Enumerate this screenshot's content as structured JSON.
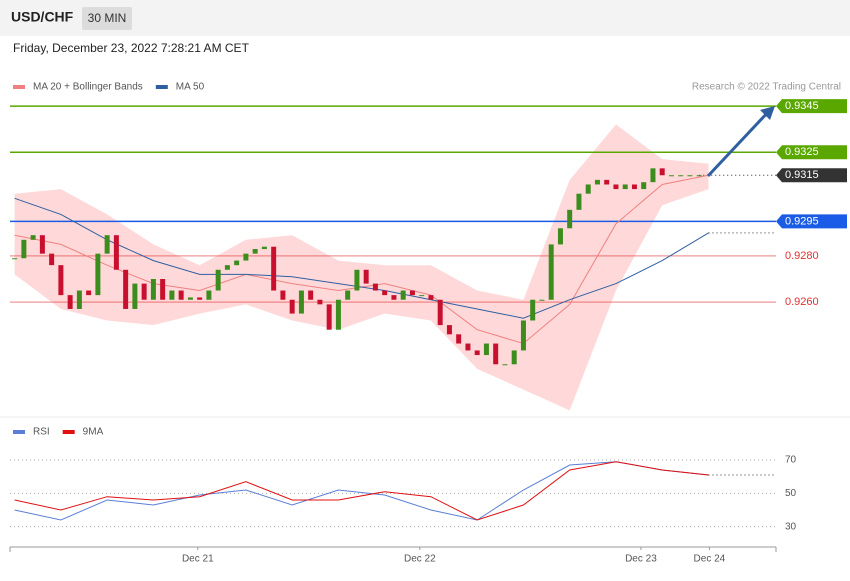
{
  "header": {
    "symbol": "USD/CHF",
    "interval": "30 MIN",
    "timestamp": "Friday, December 23, 2022 7:28:21 AM CET"
  },
  "chart_data": [
    {
      "type": "candlestick",
      "source": "Research © 2022 Trading Central",
      "values": [
        0.9279,
        0.9287,
        0.9289,
        0.9281,
        0.9276,
        0.9263,
        0.9257,
        0.9265,
        0.9263,
        0.9281,
        0.9289,
        0.9274,
        0.9257,
        0.9268,
        0.9261,
        0.927,
        0.9261,
        0.9265,
        0.9261,
        0.9262,
        0.9261,
        0.9265,
        0.9274,
        0.9276,
        0.9278,
        0.9281,
        0.9283,
        0.9284,
        0.9265,
        0.9261,
        0.9255,
        0.9265,
        0.9261,
        0.9259,
        0.9248,
        0.9261,
        0.9265,
        0.9274,
        0.9268,
        0.9265,
        0.9263,
        0.9261,
        0.9265,
        0.9263,
        0.9263,
        0.9261,
        0.925,
        0.9246,
        0.9242,
        0.9239,
        0.9237,
        0.9242,
        0.9233,
        0.9233,
        0.9239,
        0.9252,
        0.9261,
        0.9261,
        0.9285,
        0.9292,
        0.93,
        0.9307,
        0.9311,
        0.9313,
        0.9311,
        0.9309,
        0.9311,
        0.9309,
        0.9312,
        0.9318,
        0.9315,
        0.9315,
        0.9315,
        0.9315,
        0.9315
      ],
      "up_color": "#3c8c1e",
      "down_color": "#c8102e",
      "series_x": [
        0,
        5,
        10,
        15,
        20,
        25,
        30,
        35,
        40,
        45,
        50,
        55,
        60,
        65,
        70,
        75
      ],
      "series": [
        {
          "name": "MA 20 + Bollinger Bands",
          "color": "#f08080",
          "band_color": "#ffd9d9",
          "values": [
            0.9289,
            0.9285,
            0.9276,
            0.9268,
            0.9265,
            0.9272,
            0.9268,
            0.9265,
            0.9268,
            0.9263,
            0.9248,
            0.9242,
            0.9259,
            0.9294,
            0.9311,
            0.9315
          ],
          "upper": [
            0.9307,
            0.9309,
            0.9298,
            0.9285,
            0.9276,
            0.9287,
            0.9289,
            0.9278,
            0.9276,
            0.9276,
            0.9265,
            0.9261,
            0.9313,
            0.9337,
            0.9322,
            0.932
          ],
          "lower": [
            0.9272,
            0.9257,
            0.9252,
            0.925,
            0.9255,
            0.9259,
            0.9252,
            0.9248,
            0.9255,
            0.9252,
            0.9231,
            0.9222,
            0.9213,
            0.9265,
            0.9302,
            0.9309
          ]
        },
        {
          "name": "MA 50",
          "color": "#2f5fa0",
          "values": [
            0.9305,
            0.9298,
            0.9287,
            0.9278,
            0.9272,
            0.9272,
            0.9271,
            0.9268,
            0.9265,
            0.9261,
            0.9257,
            0.9253,
            0.9261,
            0.9268,
            0.9278,
            0.929
          ]
        }
      ],
      "levels": [
        {
          "value": 0.9345,
          "color": "#5aa700"
        },
        {
          "value": 0.9325,
          "color": "#5aa700"
        },
        {
          "value": 0.9315,
          "color": "#333333"
        },
        {
          "value": 0.9295,
          "color": "#1a5ce6"
        },
        {
          "value": 0.928,
          "label": "0.9280",
          "color": "#e03030"
        },
        {
          "value": 0.926,
          "label": "0.9260",
          "color": "#e03030"
        }
      ],
      "xlim": [
        -0.5,
        82.3
      ],
      "ylim": [
        0.9211,
        0.9365
      ]
    },
    {
      "type": "line",
      "x": [
        0,
        5,
        10,
        15,
        20,
        25,
        30,
        35,
        40,
        45,
        50,
        55,
        60,
        65,
        70,
        75
      ],
      "series": [
        {
          "name": "RSI",
          "color": "#5b7fd6",
          "values": [
            40,
            34,
            46,
            43,
            49,
            52,
            43,
            52,
            49,
            40,
            34,
            52,
            67,
            69,
            64,
            61
          ]
        },
        {
          "name": "9MA",
          "color": "#e01010",
          "values": [
            46,
            40,
            48,
            46,
            48,
            57,
            46,
            46,
            51,
            48,
            34,
            43,
            64,
            69,
            64,
            61
          ]
        }
      ],
      "xlim": [
        -0.5,
        82.3
      ],
      "ylim": [
        19,
        82
      ],
      "yticks": [
        30,
        50,
        70
      ],
      "xticks": [
        {
          "value": 19.8,
          "label": "Dec 21"
        },
        {
          "value": 43.8,
          "label": "Dec 22"
        },
        {
          "value": 67.7,
          "label": "Dec 23"
        },
        {
          "value": 75.1,
          "label": "Dec 24"
        }
      ]
    }
  ]
}
